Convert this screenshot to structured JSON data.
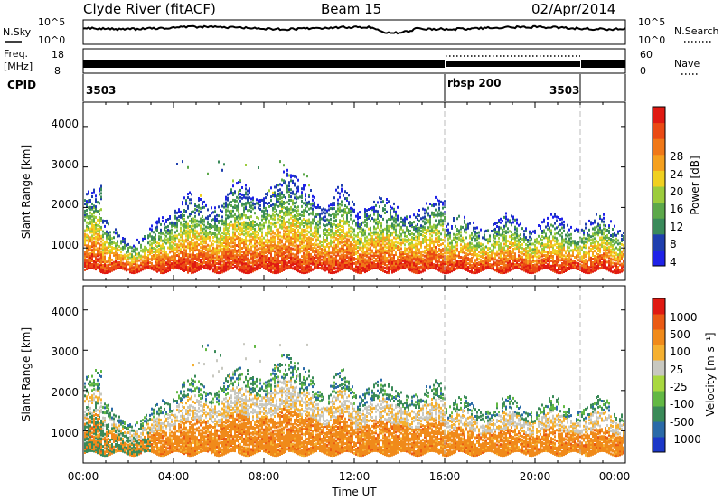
{
  "header": {
    "station": "Clyde River (fitACF)",
    "beam": "Beam 15",
    "date": "02/Apr/2014"
  },
  "noise_panel": {
    "left_label": "N.Sky",
    "right_label": "N.Search",
    "ticks_left": [
      "10^5",
      "10^0"
    ],
    "ticks_right": [
      "10^5",
      "10^0"
    ]
  },
  "freq_panel": {
    "left_label_line1": "Freq.",
    "left_label_line2": "[MHz]",
    "right_label": "Nave",
    "ticks_left": [
      "18",
      "8"
    ],
    "ticks_right": [
      "60",
      "0"
    ]
  },
  "cpid_panel": {
    "label": "CPID",
    "segments": [
      {
        "name": "3503",
        "start_hour": 0,
        "end_hour": 16
      },
      {
        "name": "rbsp 200",
        "start_hour": 16,
        "end_hour": 22
      },
      {
        "name": "3503",
        "start_hour": 22,
        "end_hour": 24
      }
    ]
  },
  "chart_data": [
    {
      "type": "heatmap",
      "name": "power",
      "xlabel": "",
      "ylabel": "Slant Range [km]",
      "xlim_hours": [
        0,
        24
      ],
      "ylim_km": [
        200,
        4600
      ],
      "yticks": [
        1000,
        2000,
        3000,
        4000
      ],
      "colorbar": {
        "label": "Power [dB]",
        "ticks": [
          "4",
          "8",
          "12",
          "16",
          "20",
          "24",
          "28"
        ],
        "colors": [
          "#1f22e8",
          "#1f3fae",
          "#3a8a5a",
          "#5ca84a",
          "#9ccc3c",
          "#f0d020",
          "#f5a01e",
          "#f07818",
          "#ea4a14",
          "#e01a12"
        ]
      },
      "scatter_bands": [
        {
          "h0": 0.1,
          "h1": 3.5,
          "r0": 500,
          "r1": 1700,
          "level": "high"
        },
        {
          "h0": 3.5,
          "h1": 9.5,
          "r0": 500,
          "r1": 2500,
          "level": "high"
        },
        {
          "h0": 9.5,
          "h1": 16,
          "r0": 500,
          "r1": 2300,
          "level": "mid"
        },
        {
          "h0": 16,
          "h1": 24,
          "r0": 500,
          "r1": 1800,
          "level": "high"
        },
        {
          "h0": 5,
          "h1": 10,
          "r0": 2200,
          "r1": 3300,
          "level": "low"
        }
      ]
    },
    {
      "type": "heatmap",
      "name": "velocity",
      "xlabel": "Time UT",
      "ylabel": "Slant Range [km]",
      "xlim_hours": [
        0,
        24
      ],
      "ylim_km": [
        200,
        4600
      ],
      "yticks": [
        1000,
        2000,
        3000,
        4000
      ],
      "xticks": [
        "00:00",
        "04:00",
        "08:00",
        "12:00",
        "16:00",
        "20:00",
        "00:00"
      ],
      "colorbar": {
        "label": "Velocity [m s⁻¹]",
        "ticks": [
          "1000",
          "500",
          "100",
          "25",
          "-25",
          "-100",
          "-500",
          "-1000"
        ],
        "colors": [
          "#1c38c8",
          "#2a6aa8",
          "#3a8a58",
          "#62b844",
          "#a8d840",
          "#c8c8c0",
          "#f5b030",
          "#f08a1a",
          "#ea5a14",
          "#e01a12"
        ]
      },
      "scatter_bands": [
        {
          "h0": 0.1,
          "h1": 3.5,
          "r0": 500,
          "r1": 1700,
          "level": "mixed"
        },
        {
          "h0": 3.5,
          "h1": 9.5,
          "r0": 500,
          "r1": 2500,
          "level": "mixed"
        },
        {
          "h0": 9.5,
          "h1": 16,
          "r0": 500,
          "r1": 2300,
          "level": "mixed"
        },
        {
          "h0": 16,
          "h1": 24,
          "r0": 500,
          "r1": 1800,
          "level": "mixed"
        }
      ]
    }
  ]
}
